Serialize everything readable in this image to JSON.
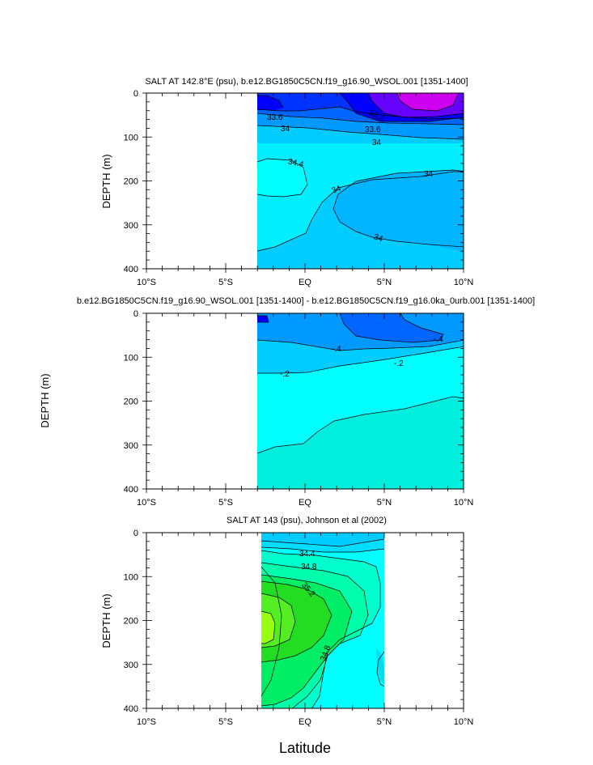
{
  "chart_data": [
    {
      "type": "contour",
      "title": "SALT AT 142.8°E (psu), b.e12.BG1850C5CN.f19_g16.90_WSOL.001 [1351-1400]",
      "ylabel": "DEPTH (m)",
      "xlabel": "",
      "xlim": [
        -10,
        10
      ],
      "ylim": [
        400,
        0
      ],
      "x_ticks": [
        "10°S",
        "5°S",
        "EQ",
        "5°N",
        "10°N"
      ],
      "y_ticks": [
        "0",
        "100",
        "200",
        "300",
        "400"
      ],
      "data_extent_x": [
        -3.1,
        10
      ],
      "contour_labels": [
        "33.2",
        "33.6",
        "34",
        "33.6",
        "34",
        "34.4",
        "34",
        "34",
        "34"
      ]
    },
    {
      "type": "contour",
      "title": "b.e12.BG1850C5CN.f19_g16.90_WSOL.001 [1351-1400] - b.e12.BG1850C5CN.f19_g16.0ka_0urb.001 [1351-1400]",
      "ylabel": "DEPTH (m)",
      "xlabel": "",
      "xlim": [
        -10,
        10
      ],
      "ylim": [
        400,
        0
      ],
      "x_ticks": [
        "10°S",
        "5°S",
        "EQ",
        "5°N",
        "10°N"
      ],
      "y_ticks": [
        "0",
        "100",
        "200",
        "300",
        "400"
      ],
      "data_extent_x": [
        -3.1,
        10
      ],
      "contour_labels": [
        "-.4",
        "-.4",
        "-.2",
        "-.2"
      ]
    },
    {
      "type": "contour",
      "title": "SALT AT 143 (psu), Johnson et al (2002)",
      "ylabel": "DEPTH (m)",
      "xlabel": "Latitude",
      "xlim": [
        -10,
        10
      ],
      "ylim": [
        400,
        0
      ],
      "x_ticks": [
        "10°S",
        "5°S",
        "EQ",
        "5°N",
        "10°N"
      ],
      "y_ticks": [
        "0",
        "100",
        "200",
        "300",
        "400"
      ],
      "data_extent_x": [
        -2.8,
        5
      ],
      "contour_labels": [
        "34.4",
        "34.8",
        "35.2",
        "34.8"
      ]
    }
  ]
}
